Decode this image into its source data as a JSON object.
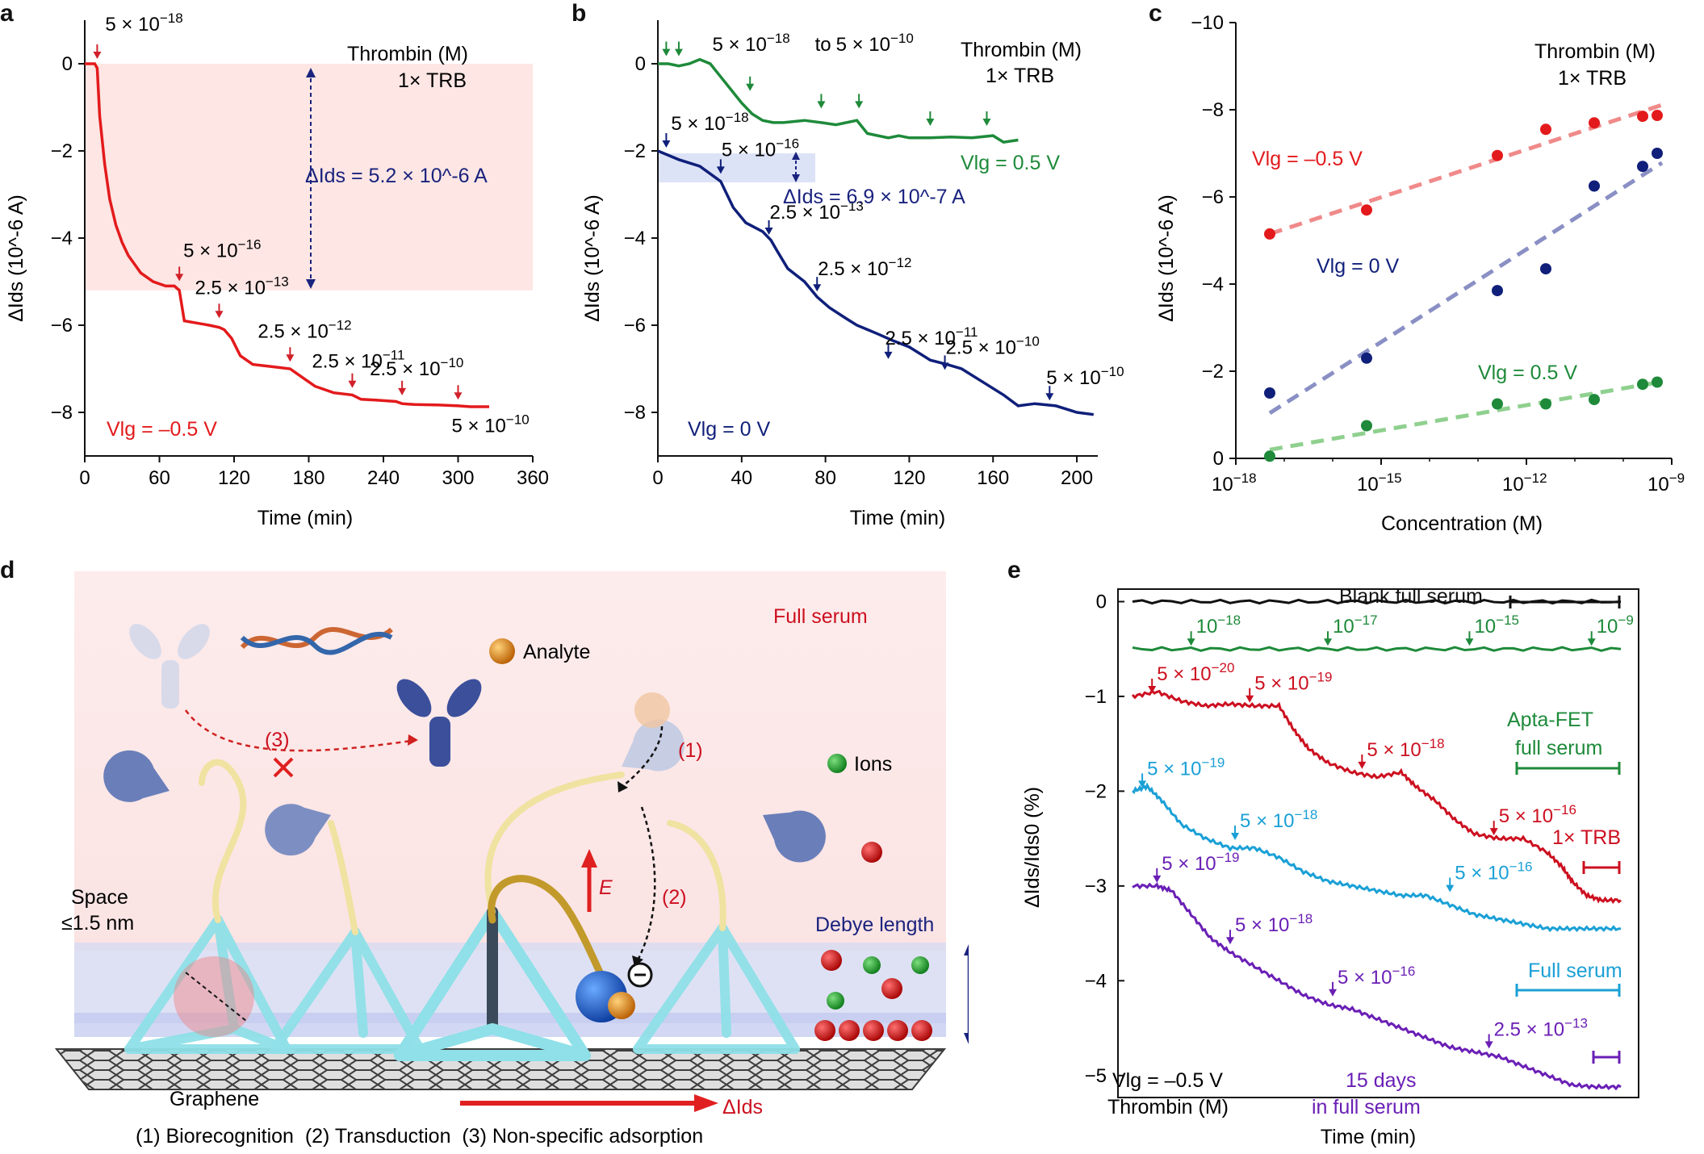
{
  "panels": {
    "a": {
      "label": "a"
    },
    "b": {
      "label": "b"
    },
    "c": {
      "label": "c"
    },
    "d": {
      "label": "d"
    },
    "e": {
      "label": "e"
    }
  },
  "chart_data": [
    {
      "id": "a",
      "type": "line",
      "title": "Thrombin (M)",
      "subtitle": "1× TRB",
      "xlabel": "Time (min)",
      "ylabel": "ΔIds (10^-6 A)",
      "xlim": [
        0,
        360
      ],
      "ylim": [
        -9,
        1
      ],
      "xticks": [
        0,
        60,
        120,
        180,
        240,
        300,
        360
      ],
      "yticks": [
        0,
        -2,
        -4,
        -6,
        -8
      ],
      "color": "#e31a1c",
      "shaded_band": {
        "x": [
          0,
          360
        ],
        "y": [
          0,
          -5.2
        ]
      },
      "delta_label": "ΔIds = 5.2 × 10^-6 A",
      "condition": "Vlg = –0.5 V",
      "series": [
        {
          "x": [
            0,
            8,
            10,
            12,
            16,
            20,
            25,
            30,
            35,
            40,
            45,
            55,
            65,
            72,
            76,
            80,
            90,
            100,
            108,
            112,
            118,
            125,
            135,
            150,
            165,
            170,
            185,
            200,
            215,
            222,
            235,
            250,
            255,
            265,
            285,
            300,
            310,
            325
          ],
          "y": [
            0,
            0,
            -0.1,
            -1.2,
            -2.3,
            -3.1,
            -3.7,
            -4.1,
            -4.4,
            -4.6,
            -4.8,
            -5.0,
            -5.1,
            -5.1,
            -5.2,
            -5.9,
            -5.95,
            -6.0,
            -6.05,
            -6.1,
            -6.3,
            -6.7,
            -6.9,
            -6.95,
            -7.0,
            -7.1,
            -7.4,
            -7.55,
            -7.6,
            -7.7,
            -7.72,
            -7.75,
            -7.8,
            -7.82,
            -7.83,
            -7.85,
            -7.87,
            -7.87
          ]
        }
      ],
      "annotations": [
        {
          "x": 10,
          "y": 0,
          "text": "5 × 10^-18"
        },
        {
          "x": 76,
          "y": -5.1,
          "text": "5 × 10^-16"
        },
        {
          "x": 108,
          "y": -5.95,
          "text": "2.5 × 10^-13"
        },
        {
          "x": 165,
          "y": -6.95,
          "text": "2.5 × 10^-12"
        },
        {
          "x": 215,
          "y": -7.55,
          "text": "2.5 × 10^-11"
        },
        {
          "x": 255,
          "y": -7.72,
          "text": "2.5 × 10^-10"
        },
        {
          "x": 300,
          "y": -7.82,
          "text": "5 × 10^-10"
        }
      ]
    },
    {
      "id": "b",
      "type": "line",
      "title": "Thrombin (M)",
      "subtitle": "1× TRB",
      "xlabel": "Time (min)",
      "ylabel": "ΔIds (10^-6 A)",
      "xlim": [
        0,
        210
      ],
      "ylim": [
        -9,
        1
      ],
      "xticks": [
        0,
        40,
        80,
        120,
        160,
        200
      ],
      "yticks": [
        0,
        -2,
        -4,
        -6,
        -8
      ],
      "delta_label": "ΔIds = 6.9 × 10^-7 A",
      "series": [
        {
          "name": "Vlg = 0.5 V",
          "color": "#1e8a3a",
          "x": [
            0,
            5,
            10,
            15,
            20,
            25,
            30,
            35,
            40,
            45,
            50,
            55,
            60,
            70,
            78,
            85,
            95,
            100,
            110,
            115,
            120,
            130,
            140,
            150,
            160,
            165,
            172
          ],
          "y": [
            0,
            0,
            -0.05,
            0,
            0.1,
            0,
            -0.3,
            -0.6,
            -0.9,
            -1.15,
            -1.3,
            -1.35,
            -1.35,
            -1.3,
            -1.35,
            -1.4,
            -1.3,
            -1.6,
            -1.7,
            -1.65,
            -1.7,
            -1.7,
            -1.68,
            -1.7,
            -1.65,
            -1.8,
            -1.75
          ]
        },
        {
          "name": "Vlg = 0 V",
          "color": "#0f1f7a",
          "x": [
            0,
            5,
            10,
            20,
            30,
            32,
            36,
            42,
            50,
            54,
            57,
            62,
            70,
            76,
            82,
            90,
            95,
            100,
            105,
            112,
            120,
            130,
            138,
            145,
            155,
            165,
            172,
            180,
            190,
            200,
            208
          ],
          "y": [
            -2.0,
            -2.1,
            -2.2,
            -2.35,
            -2.7,
            -2.9,
            -3.3,
            -3.65,
            -3.85,
            -4.05,
            -4.3,
            -4.7,
            -5.0,
            -5.35,
            -5.6,
            -5.85,
            -6.0,
            -6.1,
            -6.2,
            -6.35,
            -6.5,
            -6.8,
            -6.9,
            -7.0,
            -7.3,
            -7.6,
            -7.85,
            -7.8,
            -7.85,
            -8.0,
            -8.05
          ]
        }
      ],
      "annotations": [
        {
          "x": 4,
          "y": 0,
          "text": "5 × 10^-18 to 5 × 10^-10",
          "color": "#1e8a3a",
          "arrows_x": [
            4,
            10,
            44,
            78,
            96,
            130,
            157
          ]
        },
        {
          "x": 4,
          "y": -2,
          "text": "5 × 10^-18",
          "color": "#0f1f7a"
        },
        {
          "x": 30,
          "y": -2.6,
          "text": "5 × 10^-16",
          "color": "#0f1f7a"
        },
        {
          "x": 53,
          "y": -4.0,
          "text": "2.5 × 10^-13",
          "color": "#0f1f7a"
        },
        {
          "x": 76,
          "y": -5.3,
          "text": "2.5 × 10^-12",
          "color": "#0f1f7a"
        },
        {
          "x": 110,
          "y": -6.85,
          "text": "2.5 × 10^-11",
          "color": "#0f1f7a"
        },
        {
          "x": 137,
          "y": -7.1,
          "text": "2.5 × 10^-10",
          "color": "#0f1f7a"
        },
        {
          "x": 187,
          "y": -7.8,
          "text": "5 × 10^-10",
          "color": "#0f1f7a"
        }
      ],
      "condition_green": "Vlg = 0.5 V",
      "condition_blue": "Vlg = 0 V"
    },
    {
      "id": "c",
      "type": "scatter",
      "title": "Thrombin (M)",
      "subtitle": "1× TRB",
      "xlabel": "Concentration (M)",
      "ylabel": "ΔIds (10^-6 A)",
      "xscale": "log",
      "xlim": [
        1e-18,
        1e-09
      ],
      "ylim": [
        0,
        -10
      ],
      "xticks": [
        "10^-18",
        "10^-15",
        "10^-12",
        "10^-9"
      ],
      "yticks": [
        -10,
        -8,
        -6,
        -4,
        -2,
        0
      ],
      "series": [
        {
          "name": "Vlg = –0.5 V",
          "color": "#e31a1c",
          "x_log10": [
            -17.3,
            -15.3,
            -12.6,
            -11.6,
            -10.6,
            -9.6,
            -9.3
          ],
          "y": [
            -5.15,
            -5.7,
            -6.95,
            -7.55,
            -7.7,
            -7.85,
            -7.87
          ]
        },
        {
          "name": "Vlg = 0 V",
          "color": "#0f1f7a",
          "x_log10": [
            -17.3,
            -15.3,
            -12.6,
            -11.6,
            -10.6,
            -9.6,
            -9.3
          ],
          "y": [
            -1.5,
            -2.3,
            -3.85,
            -4.35,
            -6.25,
            -6.7,
            -7.0
          ]
        },
        {
          "name": "Vlg = 0.5 V",
          "color": "#1e8a3a",
          "x_log10": [
            -17.3,
            -15.3,
            -12.6,
            -11.6,
            -10.6,
            -9.6,
            -9.3
          ],
          "y": [
            -0.05,
            -0.75,
            -1.25,
            -1.25,
            -1.35,
            -1.7,
            -1.75
          ]
        }
      ]
    },
    {
      "id": "e",
      "type": "line",
      "xlabel": "Time (min)",
      "ylabel": "ΔIds/Ids0 (%)",
      "ylim": [
        -5.3,
        0.2
      ],
      "yticks": [
        0,
        -1,
        -2,
        -3,
        -4,
        -5
      ],
      "condition": "Vlg = –0.5 V",
      "unit_label": "Thrombin (M)",
      "series": [
        {
          "name": "Blank full serum",
          "color": "#111111",
          "x": [
            0,
            20,
            40,
            60,
            80,
            100
          ],
          "y": [
            0,
            0,
            0,
            0,
            0,
            0
          ]
        },
        {
          "name": "Apta-FET full serum",
          "color": "#1e8a3a",
          "x": [
            0,
            20,
            40,
            60,
            80,
            100
          ],
          "y": [
            -0.5,
            -0.5,
            -0.5,
            -0.5,
            -0.5,
            -0.5
          ]
        },
        {
          "name": "1× TRB",
          "color": "#cc1020",
          "x": [
            0,
            5,
            10,
            15,
            20,
            25,
            30,
            33,
            36,
            40,
            45,
            50,
            55,
            58,
            62,
            66,
            70,
            75,
            80,
            85,
            88,
            90,
            93,
            96,
            100
          ],
          "y": [
            -1.0,
            -0.95,
            -1.05,
            -1.1,
            -1.08,
            -1.1,
            -1.1,
            -1.35,
            -1.55,
            -1.7,
            -1.8,
            -1.85,
            -1.8,
            -1.95,
            -2.1,
            -2.3,
            -2.45,
            -2.5,
            -2.5,
            -2.65,
            -2.8,
            -2.95,
            -3.1,
            -3.15,
            -3.15
          ]
        },
        {
          "name": "Full serum",
          "color": "#1aa0d6",
          "x": [
            0,
            3,
            6,
            10,
            15,
            20,
            25,
            30,
            35,
            40,
            45,
            50,
            55,
            60,
            65,
            70,
            75,
            80,
            85,
            90,
            95,
            100
          ],
          "y": [
            -2.0,
            -1.95,
            -2.1,
            -2.35,
            -2.5,
            -2.6,
            -2.6,
            -2.7,
            -2.85,
            -2.95,
            -3.0,
            -3.05,
            -3.1,
            -3.1,
            -3.2,
            -3.3,
            -3.35,
            -3.4,
            -3.45,
            -3.45,
            -3.45,
            -3.45
          ]
        },
        {
          "name": "15 days in full serum",
          "color": "#6a1fb5",
          "x": [
            0,
            5,
            8,
            12,
            16,
            20,
            25,
            30,
            35,
            40,
            45,
            50,
            55,
            60,
            65,
            70,
            75,
            80,
            85,
            90,
            95,
            100
          ],
          "y": [
            -3.0,
            -3.0,
            -3.05,
            -3.3,
            -3.55,
            -3.7,
            -3.85,
            -4.0,
            -4.15,
            -4.25,
            -4.3,
            -4.4,
            -4.5,
            -4.6,
            -4.7,
            -4.75,
            -4.8,
            -4.9,
            -5.0,
            -5.1,
            -5.12,
            -5.12
          ]
        }
      ],
      "annotations": [
        {
          "x": 12,
          "y": -0.5,
          "text": "10^-18",
          "color": "#1e8a3a"
        },
        {
          "x": 40,
          "y": -0.5,
          "text": "10^-17",
          "color": "#1e8a3a"
        },
        {
          "x": 69,
          "y": -0.5,
          "text": "10^-15",
          "color": "#1e8a3a"
        },
        {
          "x": 94,
          "y": -0.5,
          "text": "10^-9",
          "color": "#1e8a3a"
        },
        {
          "x": 4,
          "y": -1.0,
          "text": "5 × 10^-20",
          "color": "#cc1020"
        },
        {
          "x": 24,
          "y": -1.1,
          "text": "5 × 10^-19",
          "color": "#cc1020"
        },
        {
          "x": 47,
          "y": -1.8,
          "text": "5 × 10^-18",
          "color": "#cc1020"
        },
        {
          "x": 74,
          "y": -2.5,
          "text": "5 × 10^-16",
          "color": "#cc1020"
        },
        {
          "x": 2,
          "y": -2.0,
          "text": "5 × 10^-19",
          "color": "#1aa0d6"
        },
        {
          "x": 21,
          "y": -2.55,
          "text": "5 × 10^-18",
          "color": "#1aa0d6"
        },
        {
          "x": 65,
          "y": -3.1,
          "text": "5 × 10^-16",
          "color": "#1aa0d6"
        },
        {
          "x": 5,
          "y": -3.0,
          "text": "5 × 10^-19",
          "color": "#6a1fb5"
        },
        {
          "x": 20,
          "y": -3.65,
          "text": "5 × 10^-18",
          "color": "#6a1fb5"
        },
        {
          "x": 41,
          "y": -4.2,
          "text": "5 × 10^-16",
          "color": "#6a1fb5"
        },
        {
          "x": 73,
          "y": -4.75,
          "text": "2.5 × 10^-13",
          "color": "#6a1fb5"
        }
      ],
      "legend_texts": {
        "blank": "Blank full serum",
        "apta1": "Apta-FET",
        "apta2": "full serum",
        "trb": "1× TRB",
        "serum": "Full serum",
        "days1": "15 days",
        "days2": "in full serum"
      }
    }
  ],
  "diagram": {
    "full_serum": "Full serum",
    "analyte": "Analyte",
    "ions": "Ions",
    "space1": "Space",
    "space2": "≤1.5 nm",
    "debye": "Debye length",
    "graphene": "Graphene",
    "delta_ids": "ΔIds",
    "efield": "E",
    "step1": "(1)",
    "step2": "(2)",
    "step3": "(3)",
    "caption": "(1) Biorecognition  (2) Transduction  (3) Non-specific adsorption"
  }
}
